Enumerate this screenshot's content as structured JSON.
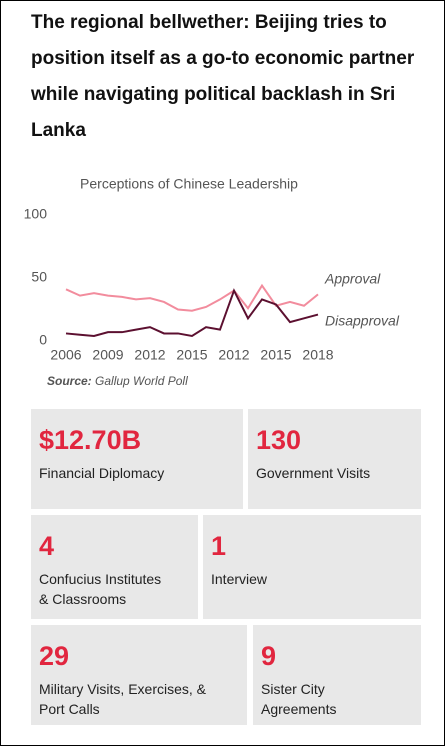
{
  "header": {
    "title": "The regional bellwether: Beijing tries to position itself as a go-to economic partner while navigating political backlash in Sri Lanka"
  },
  "chart_data": {
    "type": "line",
    "title": "Perceptions of Chinese Leadership",
    "categories": [
      "2006",
      null,
      null,
      "2009",
      null,
      null,
      "2012",
      null,
      null,
      "2015",
      null,
      null,
      "2012",
      null,
      null,
      "2015",
      null,
      null,
      "2018"
    ],
    "series": [
      {
        "name": "Approval",
        "color": "#f28c9d",
        "values": [
          41,
          36,
          38,
          36,
          35,
          33,
          34,
          31,
          25,
          24,
          27,
          33,
          40,
          26,
          44,
          28,
          31,
          28,
          37
        ]
      },
      {
        "name": "Disapproval",
        "color": "#5c1030",
        "values": [
          6,
          5,
          4,
          7,
          7,
          9,
          11,
          6,
          6,
          4,
          11,
          9,
          40,
          18,
          33,
          29,
          15,
          18,
          21
        ]
      }
    ],
    "ylim": [
      0,
      100
    ],
    "yticks": [
      0,
      50,
      100
    ],
    "grid": false,
    "source_label": "Source:",
    "source": "Gallup World Poll"
  },
  "stats": [
    [
      {
        "value": "$12.70B",
        "label": [
          "Financial Diplomacy"
        ]
      },
      {
        "value": "130",
        "label": [
          "Government Visits"
        ]
      }
    ],
    [
      {
        "value": "4",
        "label": [
          "Confucius Institutes",
          "& Classrooms"
        ]
      },
      {
        "value": "1",
        "label": [
          "Interview"
        ]
      }
    ],
    [
      {
        "value": "29",
        "label": [
          "Military Visits, Exercises, &",
          "Port Calls"
        ]
      },
      {
        "value": "9",
        "label": [
          "Sister City",
          "Agreements"
        ]
      }
    ]
  ]
}
